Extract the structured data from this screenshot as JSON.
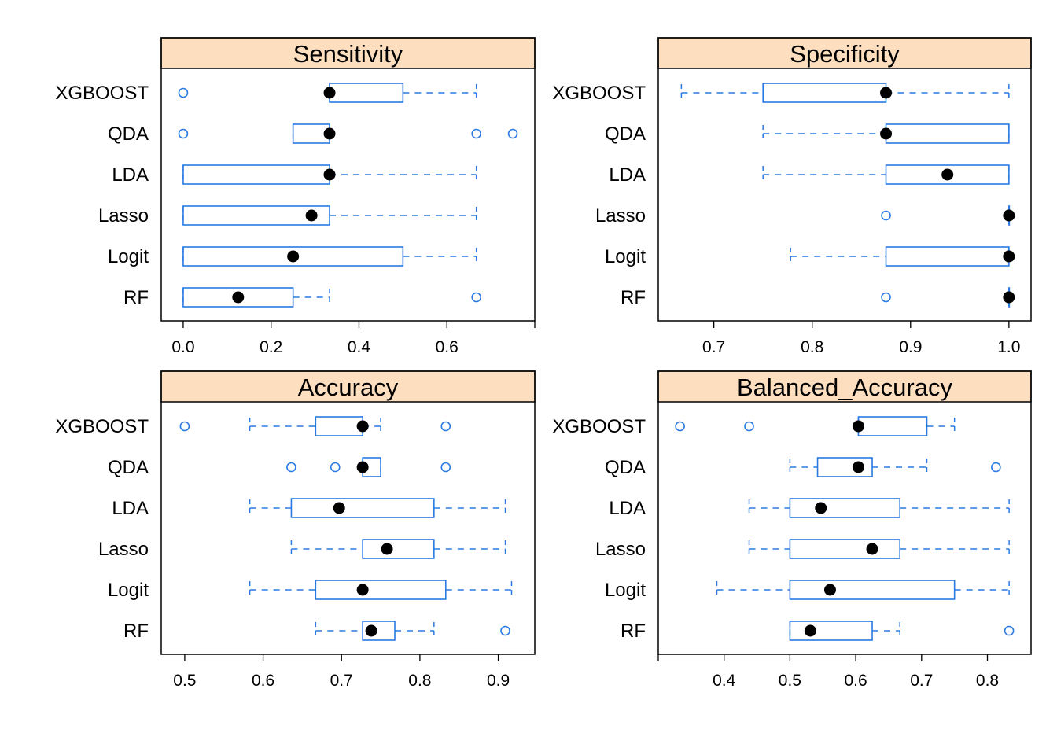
{
  "chart_data": {
    "type": "boxplot",
    "layout": "2x2 lattice panels",
    "colors": {
      "box": "#2A7AE2",
      "median_dot": "#000000",
      "strip_fill": "#FDDEBF",
      "frame": "#000000"
    },
    "categories": [
      "XGBOOST",
      "QDA",
      "LDA",
      "Lasso",
      "Logit",
      "RF"
    ],
    "panels": [
      {
        "title": "Sensitivity",
        "xlim": [
          -0.05,
          0.8
        ],
        "ticks": [
          0.0,
          0.2,
          0.4,
          0.6,
          0.8
        ],
        "tick_labels": [
          "0.0",
          "0.2",
          "0.4",
          "0.6",
          ""
        ],
        "rows": [
          {
            "label": "XGBOOST",
            "whisker_low": 0.333,
            "q1": 0.333,
            "median": 0.333,
            "q3": 0.5,
            "whisker_high": 0.667,
            "outliers": [
              0.0
            ]
          },
          {
            "label": "QDA",
            "whisker_low": 0.25,
            "q1": 0.25,
            "median": 0.333,
            "q3": 0.333,
            "whisker_high": 0.333,
            "outliers": [
              0.0,
              0.667,
              0.75
            ]
          },
          {
            "label": "LDA",
            "whisker_low": 0.0,
            "q1": 0.0,
            "median": 0.333,
            "q3": 0.333,
            "whisker_high": 0.667,
            "outliers": []
          },
          {
            "label": "Lasso",
            "whisker_low": 0.0,
            "q1": 0.0,
            "median": 0.292,
            "q3": 0.333,
            "whisker_high": 0.667,
            "outliers": []
          },
          {
            "label": "Logit",
            "whisker_low": 0.0,
            "q1": 0.0,
            "median": 0.25,
            "q3": 0.5,
            "whisker_high": 0.667,
            "outliers": []
          },
          {
            "label": "RF",
            "whisker_low": 0.0,
            "q1": 0.0,
            "median": 0.125,
            "q3": 0.25,
            "whisker_high": 0.333,
            "outliers": [
              0.667
            ]
          }
        ]
      },
      {
        "title": "Specificity",
        "xlim": [
          0.6435,
          1.0225
        ],
        "ticks": [
          0.7,
          0.8,
          0.9,
          1.0
        ],
        "tick_labels": [
          "0.7",
          "0.8",
          "0.9",
          "1.0"
        ],
        "rows": [
          {
            "label": "XGBOOST",
            "whisker_low": 0.667,
            "q1": 0.75,
            "median": 0.875,
            "q3": 0.875,
            "whisker_high": 1.0,
            "outliers": []
          },
          {
            "label": "QDA",
            "whisker_low": 0.75,
            "q1": 0.875,
            "median": 0.875,
            "q3": 1.0,
            "whisker_high": 1.0,
            "outliers": []
          },
          {
            "label": "LDA",
            "whisker_low": 0.75,
            "q1": 0.875,
            "median": 0.9375,
            "q3": 1.0,
            "whisker_high": 1.0,
            "outliers": []
          },
          {
            "label": "Lasso",
            "whisker_low": 1.0,
            "q1": 1.0,
            "median": 1.0,
            "q3": 1.0,
            "whisker_high": 1.0,
            "outliers": [
              0.875
            ]
          },
          {
            "label": "Logit",
            "whisker_low": 0.778,
            "q1": 0.875,
            "median": 1.0,
            "q3": 1.0,
            "whisker_high": 1.0,
            "outliers": []
          },
          {
            "label": "RF",
            "whisker_low": 1.0,
            "q1": 1.0,
            "median": 1.0,
            "q3": 1.0,
            "whisker_high": 1.0,
            "outliers": [
              0.875
            ]
          }
        ]
      },
      {
        "title": "Accuracy",
        "xlim": [
          0.47,
          0.9466
        ],
        "ticks": [
          0.5,
          0.6,
          0.7,
          0.8,
          0.9
        ],
        "tick_labels": [
          "0.5",
          "0.6",
          "0.7",
          "0.8",
          "0.9"
        ],
        "rows": [
          {
            "label": "XGBOOST",
            "whisker_low": 0.583,
            "q1": 0.667,
            "median": 0.727,
            "q3": 0.727,
            "whisker_high": 0.75,
            "outliers": [
              0.5,
              0.833
            ]
          },
          {
            "label": "QDA",
            "whisker_low": 0.727,
            "q1": 0.727,
            "median": 0.727,
            "q3": 0.75,
            "whisker_high": 0.75,
            "outliers": [
              0.636,
              0.692,
              0.833
            ]
          },
          {
            "label": "LDA",
            "whisker_low": 0.583,
            "q1": 0.636,
            "median": 0.697,
            "q3": 0.818,
            "whisker_high": 0.909,
            "outliers": []
          },
          {
            "label": "Lasso",
            "whisker_low": 0.636,
            "q1": 0.727,
            "median": 0.758,
            "q3": 0.818,
            "whisker_high": 0.909,
            "outliers": []
          },
          {
            "label": "Logit",
            "whisker_low": 0.583,
            "q1": 0.667,
            "median": 0.727,
            "q3": 0.833,
            "whisker_high": 0.917,
            "outliers": []
          },
          {
            "label": "RF",
            "whisker_low": 0.667,
            "q1": 0.727,
            "median": 0.738,
            "q3": 0.768,
            "whisker_high": 0.818,
            "outliers": [
              0.909
            ]
          }
        ]
      },
      {
        "title": "Balanced_Accuracy",
        "xlim": [
          0.3,
          0.8663
        ],
        "ticks": [
          0.3,
          0.4,
          0.5,
          0.6,
          0.7,
          0.8
        ],
        "tick_labels": [
          "",
          "0.4",
          "0.5",
          "0.6",
          "0.7",
          "0.8"
        ],
        "rows": [
          {
            "label": "XGBOOST",
            "whisker_low": 0.604,
            "q1": 0.604,
            "median": 0.604,
            "q3": 0.708,
            "whisker_high": 0.75,
            "outliers": [
              0.333,
              0.438
            ]
          },
          {
            "label": "QDA",
            "whisker_low": 0.5,
            "q1": 0.542,
            "median": 0.604,
            "q3": 0.625,
            "whisker_high": 0.708,
            "outliers": [
              0.813
            ]
          },
          {
            "label": "LDA",
            "whisker_low": 0.438,
            "q1": 0.5,
            "median": 0.547,
            "q3": 0.667,
            "whisker_high": 0.833,
            "outliers": []
          },
          {
            "label": "Lasso",
            "whisker_low": 0.438,
            "q1": 0.5,
            "median": 0.625,
            "q3": 0.667,
            "whisker_high": 0.833,
            "outliers": []
          },
          {
            "label": "Logit",
            "whisker_low": 0.389,
            "q1": 0.5,
            "median": 0.561,
            "q3": 0.75,
            "whisker_high": 0.833,
            "outliers": []
          },
          {
            "label": "RF",
            "whisker_low": 0.5,
            "q1": 0.5,
            "median": 0.531,
            "q3": 0.625,
            "whisker_high": 0.667,
            "outliers": [
              0.833
            ]
          }
        ]
      }
    ]
  }
}
